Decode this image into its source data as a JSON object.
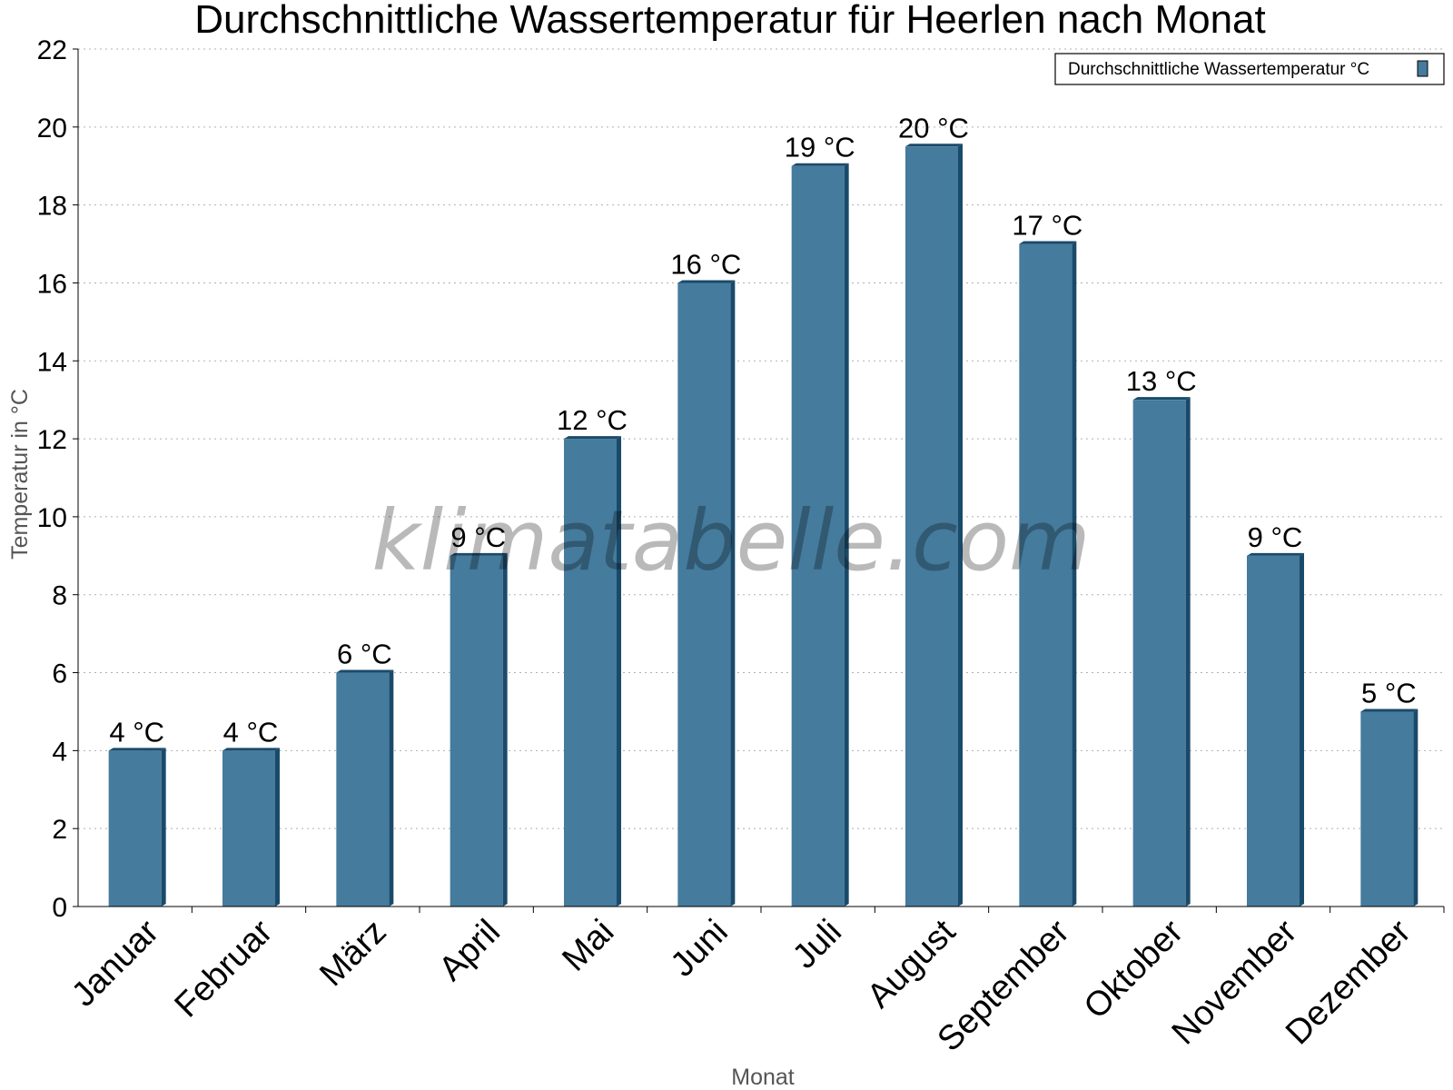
{
  "chart_data": {
    "type": "bar",
    "title": "Durchschnittliche Wassertemperatur für Heerlen nach Monat",
    "xlabel": "Monat",
    "ylabel": "Temperatur in °C",
    "categories": [
      "Januar",
      "Februar",
      "März",
      "April",
      "Mai",
      "Juni",
      "Juli",
      "August",
      "September",
      "Oktober",
      "November",
      "Dezember"
    ],
    "series": [
      {
        "name": "Durchschnittliche Wassertemperatur °C",
        "values": [
          4,
          4,
          6,
          9,
          12,
          16,
          19,
          19.5,
          17,
          13,
          9,
          5
        ],
        "labels": [
          "4 °C",
          "4 °C",
          "6 °C",
          "9 °C",
          "12 °C",
          "16 °C",
          "19 °C",
          "20 °C",
          "17 °C",
          "13 °C",
          "9 °C",
          "5 °C"
        ],
        "color": "#457b9d"
      }
    ],
    "ylim": [
      0,
      22
    ],
    "yticks": [
      0,
      2,
      4,
      6,
      8,
      10,
      12,
      14,
      16,
      18,
      20,
      22
    ],
    "grid": true,
    "legend_position": "top-right",
    "watermark": "klimatabelle.com"
  }
}
